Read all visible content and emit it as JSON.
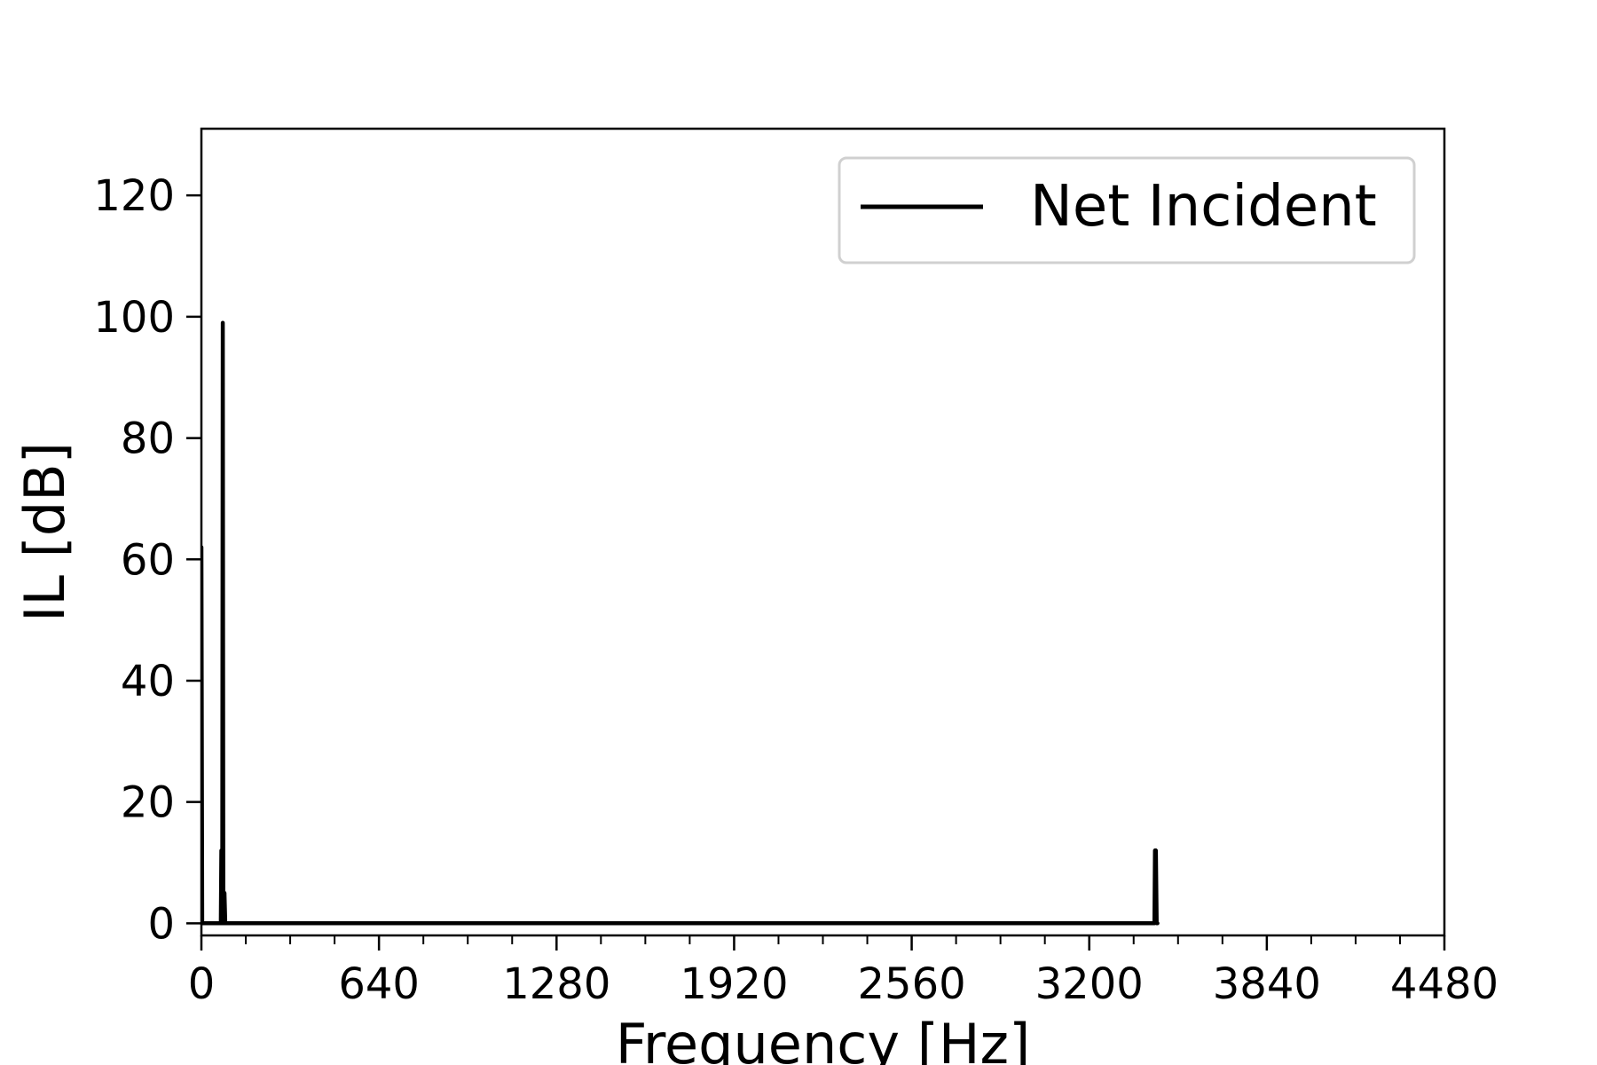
{
  "chart_data": {
    "type": "line",
    "xlabel": "Frequency [Hz]",
    "ylabel": "IL [dB]",
    "xlim": [
      0,
      4480
    ],
    "ylim": [
      -2,
      131
    ],
    "x_ticks": [
      0,
      640,
      1280,
      1920,
      2560,
      3200,
      3840,
      4480
    ],
    "x_tick_labels": [
      "0",
      "640",
      "1280",
      "1920",
      "2560",
      "3200",
      "3840",
      "4480"
    ],
    "x_minor_step": 160,
    "y_ticks": [
      0,
      20,
      40,
      60,
      80,
      100,
      120
    ],
    "y_tick_labels": [
      "0",
      "20",
      "40",
      "60",
      "80",
      "100",
      "120"
    ],
    "grid": false,
    "legend_position": "top-right",
    "series": [
      {
        "name": "Net Incident",
        "color": "#000000",
        "x": [
          0,
          3,
          6,
          70,
          72,
          75,
          77,
          79,
          81,
          83,
          86,
          89,
          95,
          3435,
          3437,
          3440,
          3443,
          3446
        ],
        "y": [
          62,
          0,
          0,
          0,
          12,
          0,
          99,
          0,
          0,
          5,
          0,
          0,
          0,
          0,
          12,
          12,
          0,
          0
        ]
      }
    ]
  }
}
